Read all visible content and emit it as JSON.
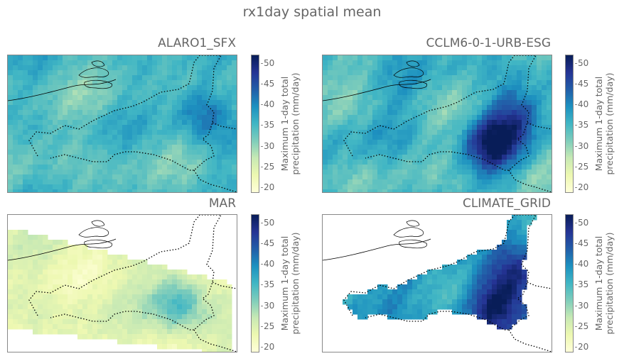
{
  "chart_data": {
    "type": "heatmap",
    "title": "rx1day spatial mean",
    "colormap": "YlGnBu",
    "colorbar": {
      "label_line1": "Maximum 1-day total",
      "label_line2": "precipitation (mm/day)",
      "range": [
        19,
        52
      ],
      "ticks": [
        "50",
        "45",
        "40",
        "35",
        "30",
        "25",
        "20"
      ]
    },
    "panels": [
      {
        "title": "ALARO1_SFX",
        "base_value": 34,
        "variation": 4,
        "coverage": "full",
        "hotspots": [
          {
            "value": 43,
            "near": "east"
          }
        ]
      },
      {
        "title": "CCLM6-0-1-URB-ESG",
        "base_value": 35,
        "variation": 5,
        "coverage": "full",
        "hotspots": [
          {
            "value": 49,
            "near": "south-east"
          },
          {
            "value": 44,
            "near": "east"
          }
        ]
      },
      {
        "title": "MAR",
        "base_value": 24,
        "variation": 3,
        "coverage": "rotated-domain",
        "hotspots": [
          {
            "value": 36,
            "near": "south-east"
          }
        ]
      },
      {
        "title": "CLIMATE_GRID",
        "base_value": 38,
        "variation": 4,
        "coverage": "belgium-only",
        "hotspots": [
          {
            "value": 49,
            "near": "south-east"
          },
          {
            "value": 47,
            "near": "east"
          }
        ]
      }
    ]
  }
}
